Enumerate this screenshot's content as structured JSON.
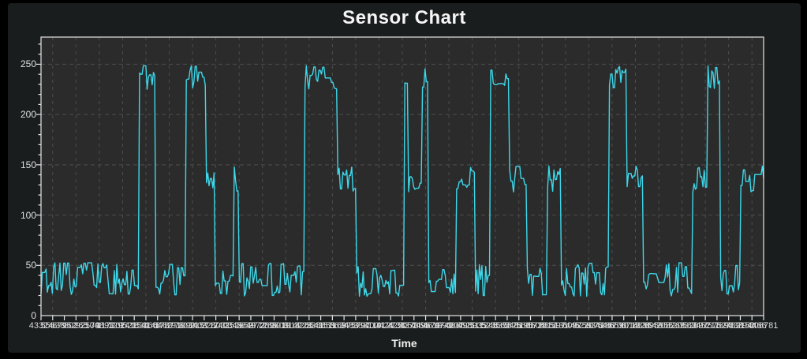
{
  "title": "Sensor Chart",
  "window": {
    "outer_bg": "#000000",
    "panel_bg": "#1a1d1d"
  },
  "chart_data": {
    "type": "line",
    "title": "Sensor Chart",
    "xlabel": "Time",
    "ylabel": "",
    "ylim": [
      0,
      277
    ],
    "yticks": [
      0,
      50,
      100,
      150,
      200,
      250
    ],
    "y_minor_step": 10,
    "grid": "dashed, major y lines and vertical lines every 2nd x tick",
    "legend": "none",
    "line_color": "#3DD8EA",
    "plot_bg": "#2b2b2b",
    "grid_color": "#4d4d4d",
    "axis_color": "#e6e6e6",
    "xticks": [
      43324,
      55638,
      67952,
      80265,
      92579,
      104893,
      117207,
      129521,
      141834,
      154148,
      166462,
      178776,
      191090,
      203403,
      215717,
      228031,
      240345,
      252659,
      264972,
      277286,
      289600,
      301914,
      314228,
      326541,
      338855,
      351169,
      363483,
      375797,
      388110,
      400424,
      412738,
      425052,
      437366,
      449679,
      461993,
      474307,
      486621,
      498935,
      511248,
      523562,
      535876,
      548190,
      560504,
      572817,
      585131,
      597445,
      609759,
      622073,
      634386,
      646700,
      659014,
      671328,
      683642,
      695955,
      708269,
      720583,
      732897,
      745211,
      757524,
      769838,
      782152,
      794466,
      806781
    ],
    "levels": {
      "low": {
        "base": 36,
        "amp": 17
      },
      "mid": {
        "base": 136,
        "amp": 13
      },
      "high": {
        "base": 237,
        "amp": 12
      }
    },
    "segments": [
      [
        "low",
        0.0,
        0.135
      ],
      [
        "high",
        0.135,
        0.159
      ],
      [
        "low",
        0.159,
        0.201
      ],
      [
        "high",
        0.201,
        0.229
      ],
      [
        "mid",
        0.229,
        0.241
      ],
      [
        "low",
        0.241,
        0.266
      ],
      [
        "mid",
        0.266,
        0.273
      ],
      [
        "low",
        0.273,
        0.365
      ],
      [
        "high",
        0.365,
        0.41
      ],
      [
        "mid",
        0.41,
        0.437
      ],
      [
        "low",
        0.437,
        0.503
      ],
      [
        "high",
        0.503,
        0.508
      ],
      [
        "mid",
        0.508,
        0.527
      ],
      [
        "high",
        0.527,
        0.535
      ],
      [
        "low",
        0.535,
        0.574
      ],
      [
        "mid",
        0.574,
        0.6
      ],
      [
        "low",
        0.6,
        0.622
      ],
      [
        "high",
        0.622,
        0.647
      ],
      [
        "mid",
        0.647,
        0.672
      ],
      [
        "low",
        0.672,
        0.7
      ],
      [
        "mid",
        0.7,
        0.72
      ],
      [
        "low",
        0.72,
        0.786
      ],
      [
        "high",
        0.786,
        0.811
      ],
      [
        "mid",
        0.811,
        0.833
      ],
      [
        "low",
        0.833,
        0.901
      ],
      [
        "mid",
        0.901,
        0.923
      ],
      [
        "high",
        0.923,
        0.94
      ],
      [
        "low",
        0.94,
        0.967
      ],
      [
        "mid",
        0.967,
        1.0
      ]
    ]
  }
}
